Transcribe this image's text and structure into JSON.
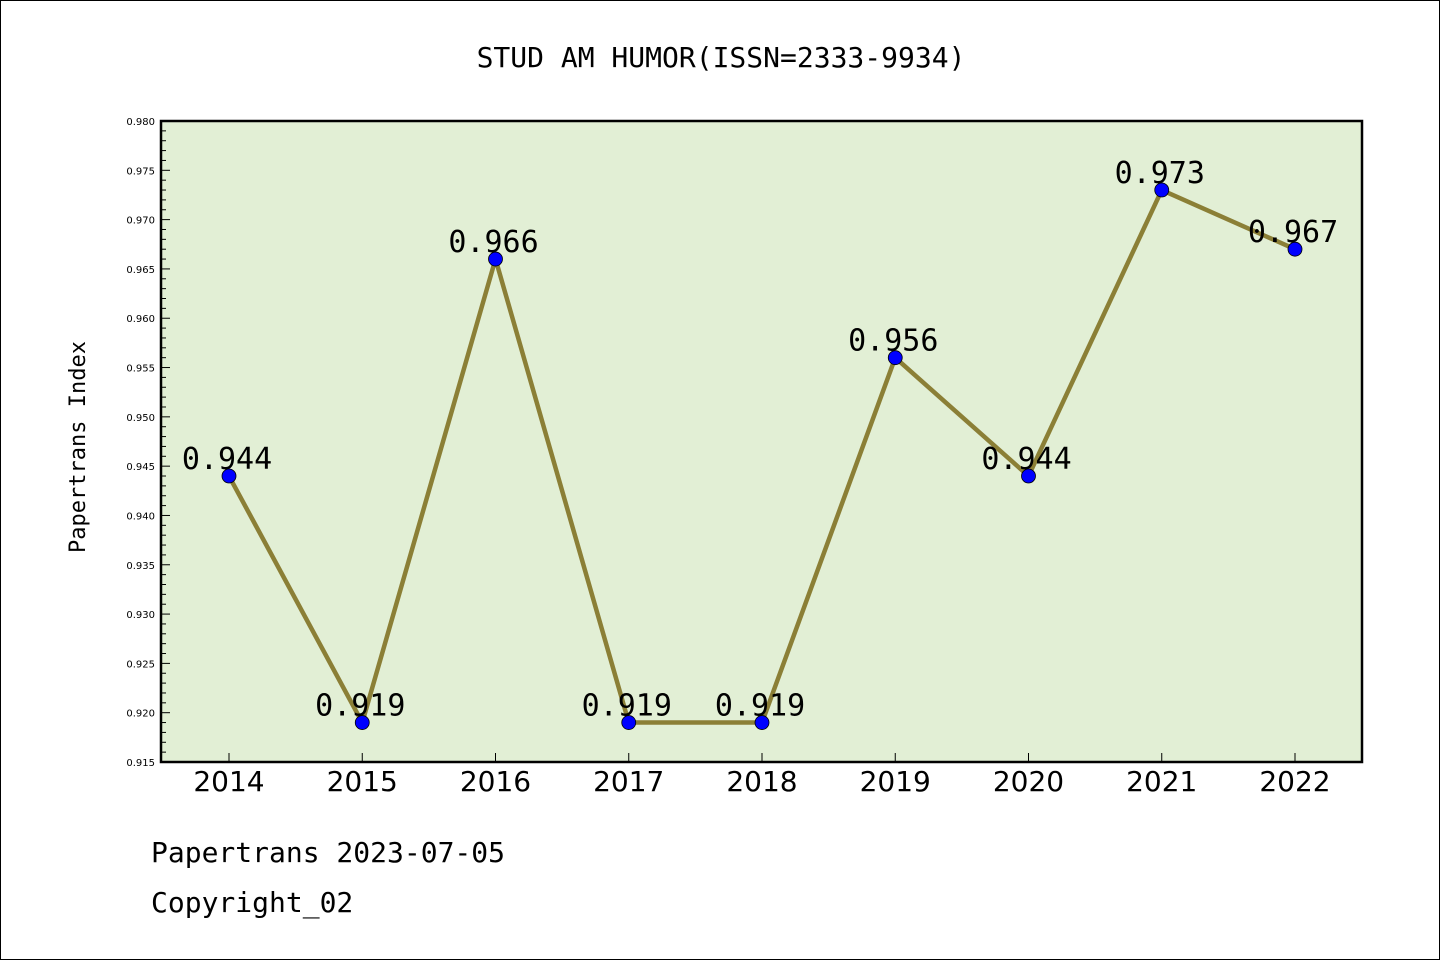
{
  "chart_data": {
    "type": "line",
    "title": "STUD AM HUMOR(ISSN=2333-9934)",
    "xlabel": "",
    "ylabel": "Papertrans Index",
    "categories": [
      "2014",
      "2015",
      "2016",
      "2017",
      "2018",
      "2019",
      "2020",
      "2021",
      "2022"
    ],
    "values": [
      0.944,
      0.919,
      0.966,
      0.919,
      0.919,
      0.956,
      0.944,
      0.973,
      0.967
    ],
    "data_labels": [
      "0.944",
      "0.919",
      "0.966",
      "0.919",
      "0.919",
      "0.956",
      "0.944",
      "0.973",
      "0.967"
    ],
    "ylim": [
      0.915,
      0.98
    ],
    "yticks": [
      "0.915",
      "0.920",
      "0.925",
      "0.930",
      "0.935",
      "0.940",
      "0.945",
      "0.950",
      "0.955",
      "0.960",
      "0.965",
      "0.970",
      "0.975",
      "0.980"
    ],
    "grid": false,
    "colors": {
      "plot_background": "#e2efd5",
      "line": "#8b7f36",
      "marker": "#0000ff",
      "axis": "#000000"
    }
  },
  "footer": {
    "line1": "Papertrans 2023-07-05",
    "line2": "Copyright_02"
  }
}
